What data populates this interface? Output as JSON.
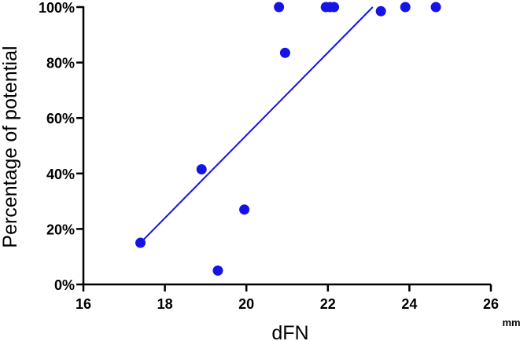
{
  "chart_data": {
    "type": "scatter",
    "title": "",
    "xlabel": "dFN",
    "ylabel": "Percentage of potential",
    "x_unit": "mm",
    "xlim": [
      16,
      26
    ],
    "ylim": [
      0,
      100
    ],
    "x_ticks": [
      16,
      18,
      20,
      22,
      24,
      26
    ],
    "y_ticks": [
      0,
      20,
      40,
      60,
      80,
      100
    ],
    "x_tick_labels": [
      "16",
      "18",
      "20",
      "22",
      "24",
      "26"
    ],
    "y_tick_labels": [
      "0%",
      "20%",
      "40%",
      "60%",
      "80%",
      "100%"
    ],
    "grid": false,
    "legend": "none",
    "colors": {
      "points": "#1414e6",
      "fit_line": "#1414e6",
      "axes": "#000000"
    },
    "series": [
      {
        "points": [
          {
            "x": 17.4,
            "y": 15
          },
          {
            "x": 18.9,
            "y": 41.5
          },
          {
            "x": 19.3,
            "y": 5
          },
          {
            "x": 19.95,
            "y": 27
          },
          {
            "x": 20.8,
            "y": 100
          },
          {
            "x": 20.95,
            "y": 83.5
          },
          {
            "x": 21.95,
            "y": 100
          },
          {
            "x": 22.05,
            "y": 100
          },
          {
            "x": 22.15,
            "y": 100
          },
          {
            "x": 23.3,
            "y": 98.5
          },
          {
            "x": 23.9,
            "y": 100
          },
          {
            "x": 24.65,
            "y": 100
          }
        ]
      }
    ],
    "fit_line": {
      "x": [
        17.4,
        23.1
      ],
      "y": [
        15,
        100
      ]
    }
  }
}
